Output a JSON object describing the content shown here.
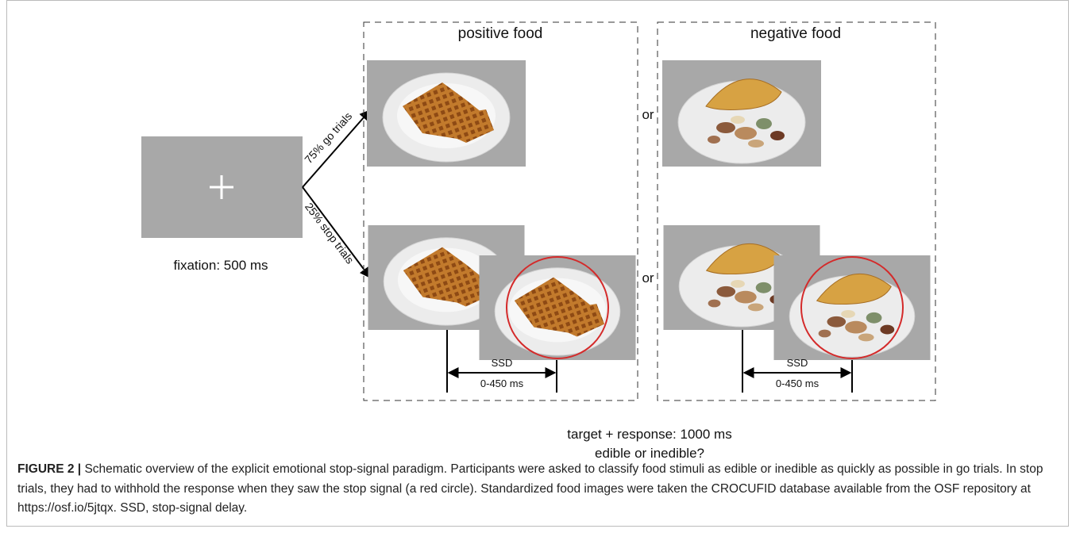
{
  "diagram": {
    "fixation_label": "fixation: 500 ms",
    "go_label": "75% go trials",
    "stop_label": "25% stop trials",
    "panels": [
      {
        "title": "positive food"
      },
      {
        "title": "negative food"
      }
    ],
    "or_labels": [
      "or",
      "or"
    ],
    "ssd_label": "SSD",
    "ssd_range": "0-450 ms",
    "target_label": "target + response: 1000 ms",
    "question": "edible or inedible?"
  },
  "caption": {
    "label": "FIGURE 2 |",
    "text": "Schematic overview of the explicit emotional stop-signal paradigm. Participants were asked to classify food stimuli as edible or inedible as quickly as possible in go trials. In stop trials, they had to withhold the response when they saw the stop signal (a red circle). Standardized food images were taken the CROCUFID database available from the OSF repository at https://osf.io/5jtqx. SSD, stop-signal delay."
  }
}
